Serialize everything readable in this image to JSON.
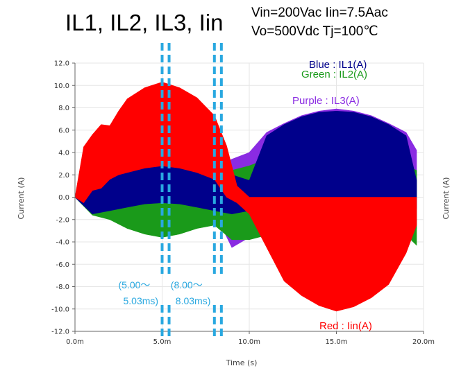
{
  "chart_data": {
    "type": "line",
    "title": "IL1, IL2, IL3, Iin",
    "conditions": [
      "Vin=200Vac Iin=7.5Aac",
      "Vo=500Vdc Tj=100℃"
    ],
    "xlabel": "Time (s)",
    "ylabel": "Current (A)",
    "xlim": [
      0,
      20
    ],
    "ylim": [
      -12,
      12
    ],
    "x_ticks": [
      {
        "v": 0,
        "label": "0.0m"
      },
      {
        "v": 5,
        "label": "5.0m"
      },
      {
        "v": 10,
        "label": "10.0m"
      },
      {
        "v": 15,
        "label": "15.0m"
      },
      {
        "v": 20,
        "label": "20.0m"
      }
    ],
    "y_ticks": [
      {
        "v": 12,
        "label": "12.0"
      },
      {
        "v": 10,
        "label": "10.0"
      },
      {
        "v": 8,
        "label": "8.0"
      },
      {
        "v": 6,
        "label": "6.0"
      },
      {
        "v": 4,
        "label": "4.0"
      },
      {
        "v": 2,
        "label": "2.0"
      },
      {
        "v": 0,
        "label": "0.0"
      },
      {
        "v": -2,
        "label": "-2.0"
      },
      {
        "v": -4,
        "label": "-4.0"
      },
      {
        "v": -6,
        "label": "-6.0"
      },
      {
        "v": -8,
        "label": "-8.0"
      },
      {
        "v": -10,
        "label": "-10.0"
      },
      {
        "v": -12,
        "label": "-12.0"
      }
    ],
    "grid": true,
    "legend_position": "top-right",
    "series": [
      {
        "name": "Purple : IL3(A)",
        "color": "#8a2be2",
        "x": [
          0,
          1,
          2,
          3,
          4,
          5,
          6,
          7,
          8,
          9,
          10,
          11,
          12,
          13,
          14,
          15,
          16,
          17,
          18,
          19,
          19.6
        ],
        "upper": [
          0,
          4.5,
          2.5,
          3.0,
          3.6,
          3.8,
          3.6,
          3.0,
          2.6,
          3.4,
          4.0,
          5.8,
          6.6,
          7.3,
          7.7,
          7.9,
          7.7,
          7.3,
          6.6,
          5.8,
          4.2
        ],
        "lower": [
          0,
          -1.5,
          -1.3,
          -1.0,
          -0.8,
          -0.7,
          -0.8,
          -1.0,
          -1.3,
          -4.5,
          -3.6,
          -2.4,
          -1.8,
          -1.3,
          -1.0,
          -0.9,
          -1.0,
          -1.3,
          -1.8,
          -2.4,
          -2.8
        ]
      },
      {
        "name": "Green : IL2(A)",
        "color": "#1a9a1a",
        "x": [
          0,
          1,
          2,
          3,
          4,
          5,
          6,
          7,
          8,
          9,
          10,
          11,
          12,
          13,
          14,
          15,
          16,
          17,
          18,
          19,
          19.6
        ],
        "upper": [
          0,
          4.8,
          2.3,
          2.8,
          3.4,
          3.6,
          3.4,
          2.8,
          2.4,
          2.4,
          2.8,
          3.4,
          3.8,
          4.0,
          4.1,
          4.1,
          4.0,
          3.8,
          3.4,
          2.8,
          2.4
        ],
        "lower": [
          0,
          -1.6,
          -2.0,
          -2.8,
          -3.3,
          -3.6,
          -3.3,
          -2.8,
          -2.5,
          -3.8,
          -3.8,
          -3.4,
          -2.6,
          -2.1,
          -1.9,
          -1.8,
          -1.9,
          -2.1,
          -2.6,
          -3.4,
          -4.3
        ]
      },
      {
        "name": "Blue : IL1(A)",
        "color": "#00008b",
        "x": [
          0,
          1,
          2,
          3,
          4,
          5,
          6,
          7,
          8,
          9,
          10,
          11,
          12,
          13,
          14,
          15,
          16,
          17,
          18,
          19,
          19.6
        ],
        "upper": [
          0,
          4.7,
          2.4,
          2.9,
          3.5,
          3.8,
          3.5,
          2.9,
          2.5,
          2.0,
          1.5,
          5.5,
          6.5,
          7.2,
          7.6,
          7.7,
          7.6,
          7.2,
          6.5,
          5.5,
          1.5
        ],
        "lower": [
          0,
          -1.5,
          -1.2,
          -0.9,
          -0.6,
          -0.5,
          -0.6,
          -0.9,
          -1.2,
          -1.5,
          -1.2,
          -0.6,
          -0.4,
          -0.3,
          -0.3,
          -0.3,
          -0.3,
          -0.3,
          -0.4,
          -0.6,
          -1.0
        ]
      },
      {
        "name": "Red : Iin(A)",
        "color": "#ff0000",
        "x": [
          0,
          0.5,
          1,
          1.5,
          2,
          2.5,
          3,
          4,
          5,
          6,
          7,
          8,
          8.7,
          9.3,
          10,
          11,
          12,
          13,
          14,
          15,
          16,
          17,
          18,
          19,
          19.6
        ],
        "upper": [
          0,
          4.5,
          5.6,
          6.5,
          6.4,
          7.7,
          8.8,
          9.8,
          10.3,
          9.8,
          8.9,
          7.3,
          4.6,
          1.0,
          0.0,
          0.0,
          0.0,
          0.0,
          0.0,
          0.0,
          0.0,
          0.0,
          0.0,
          0.0,
          0.0
        ],
        "lower": [
          0,
          -0.5,
          0.6,
          0.8,
          1.6,
          2.0,
          2.2,
          2.6,
          2.8,
          2.6,
          2.2,
          1.6,
          0.0,
          -0.5,
          -1.5,
          -4.5,
          -7.5,
          -8.8,
          -9.7,
          -10.2,
          -9.8,
          -9.0,
          -7.8,
          -5.0,
          -2.5
        ]
      }
    ],
    "annotations": [
      {
        "lines": [
          "(5.00～",
          "5.03ms)"
        ],
        "markers": [
          5.0,
          5.4
        ]
      },
      {
        "lines": [
          "(8.00～",
          "8.03ms)"
        ],
        "markers": [
          8.0,
          8.4
        ]
      }
    ],
    "cut_off_label": "Current (A)"
  }
}
